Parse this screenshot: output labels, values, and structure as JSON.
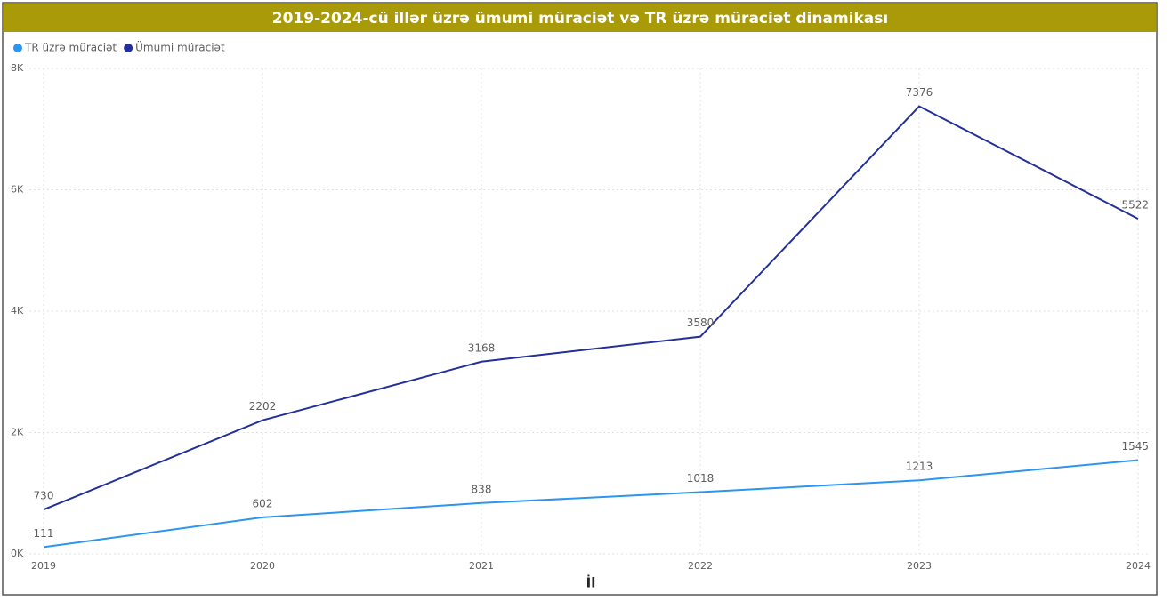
{
  "chart_data": {
    "type": "line",
    "title": "2019-2024-cü illər üzrə ümumi müraciət və TR üzrə müraciət dinamikası",
    "x_label": "İl",
    "x": [
      2019,
      2020,
      2021,
      2022,
      2023,
      2024
    ],
    "xlim": [
      2019,
      2024
    ],
    "xticks": [
      2019,
      2020,
      2021,
      2022,
      2023,
      2024
    ],
    "ylim": [
      0,
      8000
    ],
    "yticks": [
      {
        "value": 0,
        "label": "0K"
      },
      {
        "value": 2000,
        "label": "2K"
      },
      {
        "value": 4000,
        "label": "4K"
      },
      {
        "value": 6000,
        "label": "6K"
      },
      {
        "value": 8000,
        "label": "8K"
      }
    ],
    "grid": true,
    "series": [
      {
        "name": "TR üzrə müraciət",
        "color": "#2b95ef",
        "values": [
          111,
          602,
          838,
          1018,
          1213,
          1545
        ]
      },
      {
        "name": "Ümumi müraciət",
        "color": "#23309a",
        "values": [
          730,
          2202,
          3168,
          3580,
          7376,
          5522
        ]
      }
    ]
  }
}
